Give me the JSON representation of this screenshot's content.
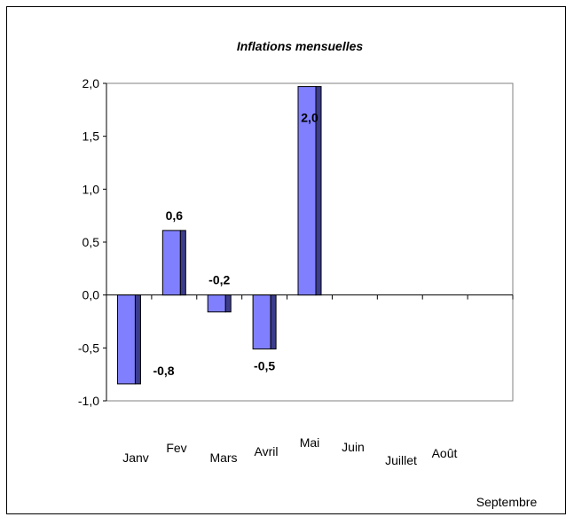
{
  "chart_data": {
    "type": "bar",
    "title": "Inflations mensuelles",
    "categories": [
      "Janv",
      "Fev",
      "Mars",
      "Avril",
      "Mai",
      "Juin",
      "Juillet",
      "Août",
      "Septembre"
    ],
    "values": [
      -0.84,
      0.61,
      -0.16,
      -0.51,
      1.97,
      null,
      null,
      null,
      null
    ],
    "data_labels": [
      "-0,8",
      "0,6",
      "-0,2",
      "-0,5",
      "2,0",
      "",
      "",
      "",
      ""
    ],
    "yticks": [
      2.0,
      1.5,
      1.0,
      0.5,
      0.0,
      -0.5,
      -1.0
    ],
    "ytick_labels": [
      "2,0",
      "1,5",
      "1,0",
      "0,5",
      "0,0",
      "-0,5",
      "-1,0"
    ],
    "ylim": [
      -1.0,
      2.0
    ],
    "grid": false,
    "legend": "none",
    "colors": {
      "bar_face": "#8080ff",
      "bar_side": "#3c3c8c",
      "axis": "#000000"
    }
  }
}
